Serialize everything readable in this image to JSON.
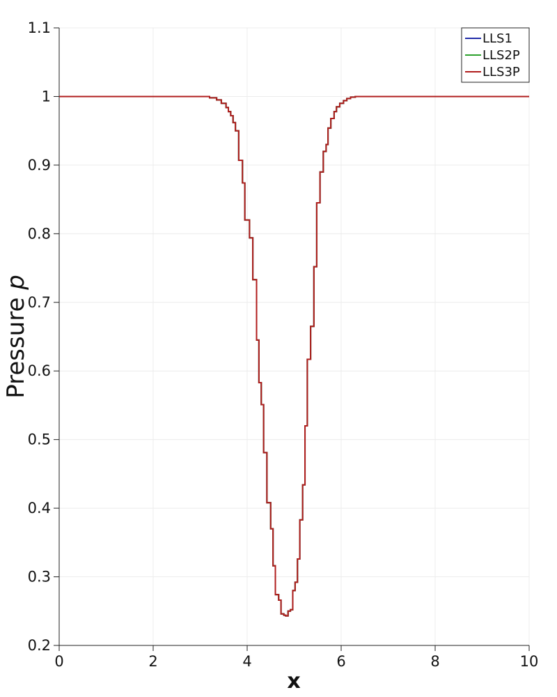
{
  "chart_data": {
    "type": "line",
    "title": "",
    "xlabel": "x",
    "ylabel": "Pressure",
    "ylabel_symbol": "p",
    "xlim": [
      0,
      10
    ],
    "ylim": [
      0.2,
      1.1
    ],
    "xticks": [
      0,
      2,
      4,
      6,
      8,
      10
    ],
    "xtick_labels": [
      "0",
      "2",
      "4",
      "6",
      "8",
      "10"
    ],
    "yticks": [
      0.2,
      0.3,
      0.4,
      0.5,
      0.6,
      0.7,
      0.8,
      0.9,
      1.0,
      1.1
    ],
    "ytick_labels": [
      "0.2",
      "0.3",
      "0.4",
      "0.5",
      "0.6",
      "0.7",
      "0.8",
      "0.9",
      "1",
      "1.1"
    ],
    "grid": true,
    "legend_position": "top-right",
    "x": [
      0,
      2.9,
      3.2,
      3.35,
      3.45,
      3.55,
      3.6,
      3.65,
      3.7,
      3.75,
      3.82,
      3.9,
      3.95,
      4.05,
      4.12,
      4.2,
      4.25,
      4.3,
      4.35,
      4.42,
      4.5,
      4.55,
      4.6,
      4.67,
      4.72,
      4.78,
      4.82,
      4.87,
      4.92,
      4.97,
      5.02,
      5.07,
      5.12,
      5.18,
      5.23,
      5.28,
      5.35,
      5.42,
      5.48,
      5.55,
      5.62,
      5.68,
      5.72,
      5.78,
      5.85,
      5.9,
      5.97,
      6.05,
      6.12,
      6.2,
      6.3,
      6.4,
      6.5,
      6.6,
      6.8,
      7.1,
      10
    ],
    "series": [
      {
        "name": "LLS1",
        "color": "#1f2aa8",
        "values": [
          1,
          1,
          0.998,
          0.995,
          0.99,
          0.984,
          0.978,
          0.972,
          0.962,
          0.95,
          0.907,
          0.874,
          0.82,
          0.794,
          0.733,
          0.645,
          0.583,
          0.551,
          0.481,
          0.408,
          0.37,
          0.316,
          0.274,
          0.266,
          0.246,
          0.244,
          0.243,
          0.25,
          0.252,
          0.28,
          0.292,
          0.326,
          0.383,
          0.434,
          0.52,
          0.617,
          0.665,
          0.752,
          0.845,
          0.89,
          0.92,
          0.93,
          0.954,
          0.968,
          0.978,
          0.985,
          0.99,
          0.994,
          0.997,
          0.999,
          1,
          1,
          1,
          1,
          1,
          1,
          1
        ]
      },
      {
        "name": "LLS2P",
        "color": "#2ca02c",
        "values": [
          1,
          1,
          0.998,
          0.995,
          0.99,
          0.984,
          0.978,
          0.972,
          0.962,
          0.95,
          0.907,
          0.874,
          0.82,
          0.794,
          0.733,
          0.645,
          0.583,
          0.551,
          0.481,
          0.408,
          0.37,
          0.316,
          0.274,
          0.266,
          0.246,
          0.244,
          0.243,
          0.25,
          0.252,
          0.28,
          0.292,
          0.326,
          0.383,
          0.434,
          0.52,
          0.617,
          0.665,
          0.752,
          0.845,
          0.89,
          0.92,
          0.93,
          0.954,
          0.968,
          0.978,
          0.985,
          0.99,
          0.994,
          0.997,
          0.999,
          1,
          1,
          1,
          1,
          1,
          1,
          1
        ]
      },
      {
        "name": "LLS3P",
        "color": "#b01c1c",
        "values": [
          1,
          1,
          0.998,
          0.995,
          0.99,
          0.984,
          0.978,
          0.972,
          0.962,
          0.95,
          0.907,
          0.874,
          0.82,
          0.794,
          0.733,
          0.645,
          0.583,
          0.551,
          0.481,
          0.408,
          0.37,
          0.316,
          0.274,
          0.266,
          0.246,
          0.244,
          0.243,
          0.25,
          0.252,
          0.28,
          0.292,
          0.326,
          0.383,
          0.434,
          0.52,
          0.617,
          0.665,
          0.752,
          0.845,
          0.89,
          0.92,
          0.93,
          0.954,
          0.968,
          0.978,
          0.985,
          0.99,
          0.994,
          0.997,
          0.999,
          1,
          1,
          1,
          1,
          1,
          1,
          1
        ]
      }
    ]
  }
}
